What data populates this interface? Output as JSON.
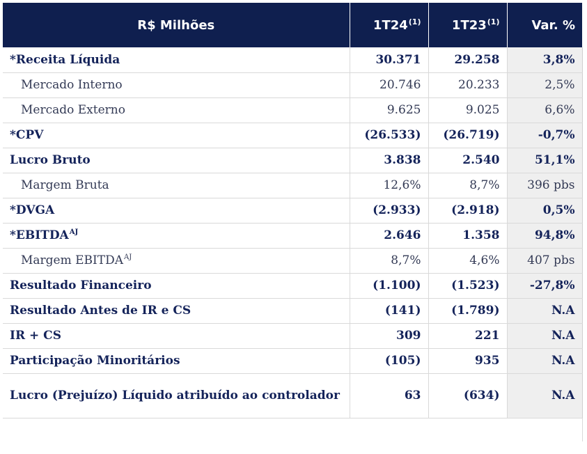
{
  "header": {
    "label": "R$ Milhões",
    "col1": "1T24",
    "col1_note": "(1)",
    "col2": "1T23",
    "col2_note": "(1)",
    "col3": "Var. %"
  },
  "rows": [
    {
      "label": "*Receita Líquida",
      "sup": "",
      "v1": "30.371",
      "v2": "29.258",
      "var": "3,8%",
      "style": "b"
    },
    {
      "label": "Mercado Interno",
      "sup": "",
      "v1": "20.746",
      "v2": "20.233",
      "var": "2,5%",
      "style": "s"
    },
    {
      "label": "Mercado Externo",
      "sup": "",
      "v1": "9.625",
      "v2": "9.025",
      "var": "6,6%",
      "style": "s"
    },
    {
      "label": "*CPV",
      "sup": "",
      "v1": "(26.533)",
      "v2": "(26.719)",
      "var": "-0,7%",
      "style": "b"
    },
    {
      "label": "Lucro Bruto",
      "sup": "",
      "v1": "3.838",
      "v2": "2.540",
      "var": "51,1%",
      "style": "b"
    },
    {
      "label": "Margem Bruta",
      "sup": "",
      "v1": "12,6%",
      "v2": "8,7%",
      "var": "396 pbs",
      "style": "s"
    },
    {
      "label": "*DVGA",
      "sup": "",
      "v1": "(2.933)",
      "v2": "(2.918)",
      "var": "0,5%",
      "style": "b"
    },
    {
      "label": "*EBITDA",
      "sup": "AJ",
      "v1": "2.646",
      "v2": "1.358",
      "var": "94,8%",
      "style": "b"
    },
    {
      "label": "Margem EBITDA",
      "sup": "AJ",
      "v1": "8,7%",
      "v2": "4,6%",
      "var": "407 pbs",
      "style": "s"
    },
    {
      "label": "Resultado Financeiro",
      "sup": "",
      "v1": "(1.100)",
      "v2": "(1.523)",
      "var": "-27,8%",
      "style": "b"
    },
    {
      "label": "Resultado Antes de IR e CS",
      "sup": "",
      "v1": "(141)",
      "v2": "(1.789)",
      "var": "N.A",
      "style": "b"
    },
    {
      "label": "IR + CS",
      "sup": "",
      "v1": "309",
      "v2": "221",
      "var": "N.A",
      "style": "b"
    },
    {
      "label": "Participação Minoritários",
      "sup": "",
      "v1": "(105)",
      "v2": "935",
      "var": "N.A",
      "style": "b"
    },
    {
      "label": "Lucro (Prejuízo) Líquido atribuído ao controlador",
      "sup": "",
      "v1": "63",
      "v2": "(634)",
      "var": "N.A",
      "style": "b tall"
    }
  ]
}
